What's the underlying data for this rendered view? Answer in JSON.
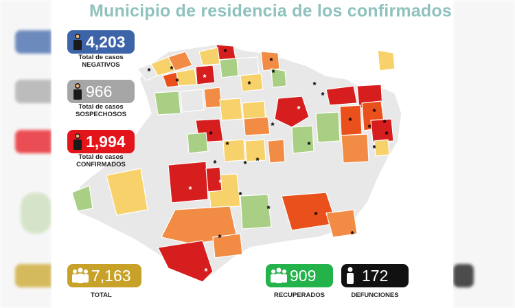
{
  "title": "Municipio de residencia de los confirmados",
  "stats": {
    "negativos": {
      "value": "4,203",
      "caption_line1": "Total de casos",
      "caption_line2": "NEGATIVOS",
      "color": "#3d63a8",
      "icon": "person-icon"
    },
    "sospechosos": {
      "value": "966",
      "caption_line1": "Total de casos",
      "caption_line2": "SOSPECHOSOS",
      "color": "#a6a6a6",
      "icon": "person-icon"
    },
    "confirmados": {
      "value": "1,994",
      "caption_line1": "Total de casos",
      "caption_line2": "CONFIRMADOS",
      "color": "#e4141b",
      "icon": "person-icon"
    },
    "total": {
      "value": "7,163",
      "caption": "TOTAL",
      "color": "#c8a228",
      "icon": "group-icon"
    },
    "recuperados": {
      "value": "909",
      "caption": "RECUPERADOS",
      "color": "#24b24b",
      "icon": "group-icon"
    },
    "defunciones": {
      "value": "172",
      "caption": "DEFUNCIONES",
      "color": "#111111",
      "icon": "person-icon"
    }
  },
  "map": {
    "colors": {
      "none": "#e8e8e8",
      "low": "#a9cf84",
      "medium": "#f7d26a",
      "high": "#f28c45",
      "very_high": "#e9501c",
      "highest": "#d61e1e",
      "border": "#ffffff"
    },
    "marker_symbol": "*"
  }
}
